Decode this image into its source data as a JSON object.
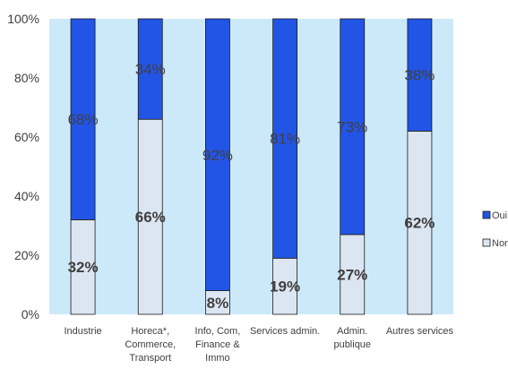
{
  "chart_data": {
    "type": "bar",
    "stacked": true,
    "categories": [
      [
        "Industrie"
      ],
      [
        "Horeca*,",
        "Commerce,",
        "Transport"
      ],
      [
        "Info, Com,",
        "Finance &",
        "Immo"
      ],
      [
        "Services admin."
      ],
      [
        "Admin.",
        "publique"
      ],
      [
        "Autres services"
      ]
    ],
    "series": [
      {
        "name": "Non",
        "values": [
          32,
          66,
          8,
          19,
          27,
          62
        ],
        "color": "#dce6f2"
      },
      {
        "name": "Oui",
        "values": [
          68,
          34,
          92,
          81,
          73,
          38
        ],
        "color": "#2255e6"
      }
    ],
    "data_labels": {
      "Non": [
        "32%",
        "66%",
        "8%",
        "19%",
        "27%",
        "62%"
      ],
      "Oui": [
        "68%",
        "34%",
        "92%",
        "81%",
        "73%",
        "38%"
      ]
    },
    "yticks": [
      "0%",
      "20%",
      "40%",
      "60%",
      "80%",
      "100%"
    ],
    "ylim": [
      0,
      100
    ],
    "legend": {
      "position": "right",
      "entries": [
        "Oui",
        "Non"
      ]
    },
    "plot_background": "#cce9fa",
    "bar_outline": "#1a1a1a"
  }
}
